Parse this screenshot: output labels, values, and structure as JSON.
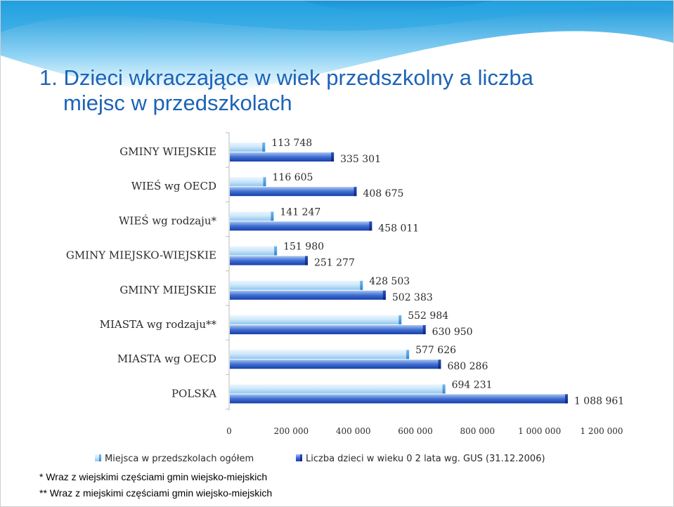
{
  "slide": {
    "title_line1": "1. Dzieci wkraczające w wiek przedszkolny a liczba",
    "title_line2": "miejsc w przedszkolach",
    "footnote1": "* Wraz z wiejskimi częściami gmin wiejsko-miejskich",
    "footnote2": "** Wraz z miejskimi częściami gmin wiejsko-miejskich"
  },
  "colors": {
    "title": "#1c63b7",
    "series1_light": "#d6ecfa",
    "series1_dark": "#4aa2e2",
    "series2_light": "#7fa8e6",
    "series2_dark": "#0f2e99",
    "wave": "#2aa7e4"
  },
  "chart_data": {
    "type": "bar",
    "orientation": "horizontal",
    "categories": [
      "GMINY WIEJSKIE",
      "WIEŚ wg OECD",
      "WIEŚ wg rodzaju*",
      "GMINY MIEJSKO-WIEJSKIE",
      "GMINY MIEJSKIE",
      "MIASTA wg rodzaju**",
      "MIASTA wg OECD",
      "POLSKA"
    ],
    "series": [
      {
        "name": "Miejsca w przedszkolach ogółem",
        "values": [
          113748,
          116605,
          141247,
          151980,
          428503,
          552984,
          577626,
          694231
        ],
        "labels": [
          "113 748",
          "116 605",
          "141 247",
          "151 980",
          "428 503",
          "552 984",
          "577 626",
          "694 231"
        ]
      },
      {
        "name": "Liczba dzieci w wieku 0 2 lata wg. GUS (31.12.2006)",
        "values": [
          335301,
          408675,
          458011,
          251277,
          502383,
          630950,
          680286,
          1088961
        ],
        "labels": [
          "335 301",
          "408 675",
          "458 011",
          "251 277",
          "502 383",
          "630 950",
          "680 286",
          "1 088 961"
        ]
      }
    ],
    "xlim": [
      0,
      1200000
    ],
    "xticks": [
      0,
      200000,
      400000,
      600000,
      800000,
      1000000,
      1200000
    ],
    "xtick_labels": [
      "0",
      "200 000",
      "400 000",
      "600 000",
      "800 000",
      "1 000 000",
      "1 200 000"
    ],
    "grid": false,
    "legend_position": "bottom"
  }
}
